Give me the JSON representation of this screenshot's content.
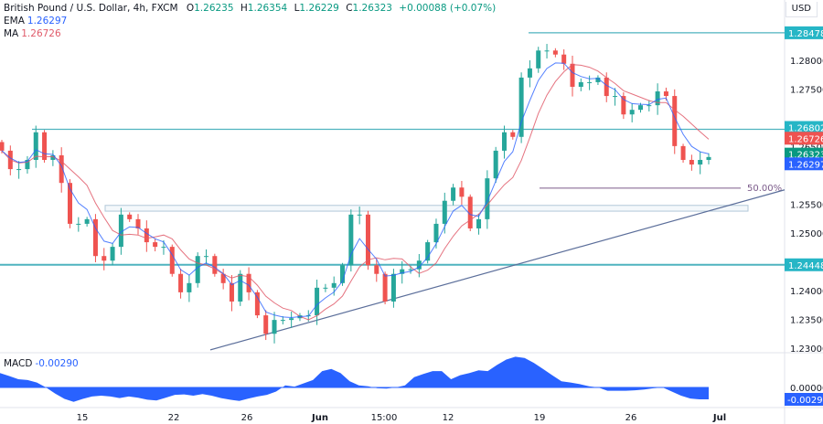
{
  "header": {
    "symbol": "British Pound / U.S. Dollar, 4h, FXCM",
    "open_label": "O",
    "open": "1.26235",
    "high_label": "H",
    "high": "1.26354",
    "low_label": "L",
    "low": "1.26229",
    "close_label": "C",
    "close": "1.26323",
    "change": "+0.00088 (+0.07%)"
  },
  "indicators": {
    "ema": {
      "label": "EMA",
      "value": "1.26297",
      "color": "#2962ff"
    },
    "ma": {
      "label": "MA",
      "value": "1.26726",
      "color": "#e05b6a"
    },
    "macd": {
      "label": "MACD",
      "value": "-0.00290",
      "color": "#2962ff"
    }
  },
  "currency": "USD",
  "colors": {
    "up": "#26a69a",
    "down": "#ef5350",
    "level": "#4fb3bf",
    "trend": "#5b6e9a",
    "fib": "#7b5b8a",
    "zone": "#b2c8d9"
  },
  "price_axis": {
    "ticks": [
      "1.28000",
      "1.27500",
      "1.26500",
      "1.25500",
      "1.25000",
      "1.24000",
      "1.23500",
      "1.23000"
    ],
    "badges": [
      {
        "value": "1.28478",
        "color": "#26b6c6"
      },
      {
        "value": "1.26802",
        "color": "#26b6c6"
      },
      {
        "value": "1.26726",
        "color": "#ef5350"
      },
      {
        "value": "1.26323",
        "color": "#089981"
      },
      {
        "value": "1.26297",
        "color": "#2962ff"
      },
      {
        "value": "1.24448",
        "color": "#26b6c6"
      }
    ]
  },
  "macd_axis": {
    "zero": "0.00000",
    "badge": {
      "value": "-0.00290",
      "color": "#2962ff"
    }
  },
  "time_axis": {
    "labels": [
      "15",
      "22",
      "26",
      "Jun",
      "15:00",
      "12",
      "19",
      "26",
      "Jul"
    ]
  },
  "drawings": {
    "levels": [
      1.28478,
      1.26802,
      1.24448
    ],
    "zone": [
      1.2538,
      1.2548
    ],
    "fib_label": "50.00%",
    "fib_price": 1.2578,
    "trendline": [
      1.2297,
      1.2575
    ]
  },
  "chart_data": {
    "type": "candlestick",
    "price_range": [
      1.228,
      1.29
    ],
    "closes": [
      1.2643,
      1.2611,
      1.2611,
      1.2627,
      1.2675,
      1.2627,
      1.2635,
      1.2587,
      1.2516,
      1.2516,
      1.2524,
      1.246,
      1.2452,
      1.2476,
      1.2532,
      1.2524,
      1.2508,
      1.2484,
      1.2476,
      1.2476,
      1.2429,
      1.2397,
      1.2413,
      1.246,
      1.246,
      1.2429,
      1.2413,
      1.2381,
      1.2429,
      1.2397,
      1.2357,
      1.2325,
      1.2349,
      1.2349,
      1.2352,
      1.2357,
      1.2357,
      1.2405,
      1.2405,
      1.2413,
      1.2444,
      1.2532,
      1.2532,
      1.2444,
      1.2429,
      1.2381,
      1.2429,
      1.2437,
      1.2437,
      1.2452,
      1.2484,
      1.2516,
      1.2556,
      1.2579,
      1.2563,
      1.2508,
      1.2524,
      1.2595,
      1.2643,
      1.2675,
      1.2667,
      1.277,
      1.2786,
      1.2817,
      1.2817,
      1.281,
      1.2794,
      1.2754,
      1.2762,
      1.2762,
      1.277,
      1.2738,
      1.2738,
      1.2706,
      1.2714,
      1.2722,
      1.2722,
      1.2746,
      1.2738,
      1.2651,
      1.2627,
      1.2619,
      1.2627,
      1.2632
    ],
    "macd": [
      0.0035,
      0.0028,
      0.002,
      0.0018,
      0.0012,
      0,
      -0.0015,
      -0.0028,
      -0.0035,
      -0.0028,
      -0.0022,
      -0.002,
      -0.0022,
      -0.0026,
      -0.0022,
      -0.0025,
      -0.003,
      -0.0032,
      -0.0025,
      -0.0018,
      -0.0017,
      -0.002,
      -0.0016,
      -0.002,
      -0.0026,
      -0.003,
      -0.0033,
      -0.0027,
      -0.0022,
      -0.0018,
      -0.001,
      0.0005,
      0.0002,
      0.001,
      0.0018,
      0.004,
      0.0045,
      0.0035,
      0.0015,
      0.0005,
      0.0003,
      -0.0002,
      -0.0003,
      0,
      0.0005,
      0.0025,
      0.0033,
      0.004,
      0.004,
      0.002,
      0.003,
      0.0035,
      0.0042,
      0.004,
      0.0055,
      0.0068,
      0.0075,
      0.0072,
      0.006,
      0.0045,
      0.003,
      0.0015,
      0.0012,
      0.0008,
      0.0003,
      0,
      -0.0008,
      -0.0008,
      -0.0008,
      -0.0007,
      -0.0005,
      -0.0002,
      0,
      -0.001,
      -0.002,
      -0.0027,
      -0.0029,
      -0.0029
    ]
  }
}
